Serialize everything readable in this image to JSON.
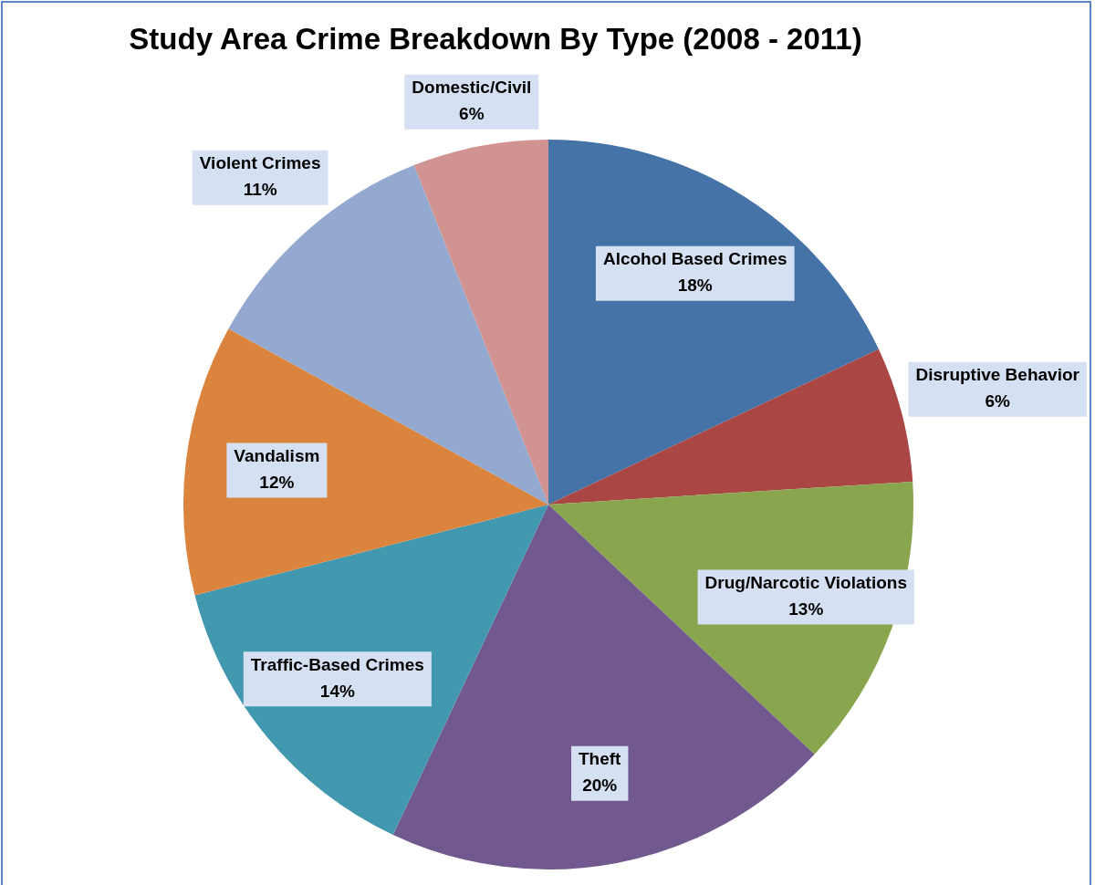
{
  "chart_data": {
    "type": "pie",
    "title": "Study Area Crime Breakdown By Type (2008 - 2011)",
    "categories": [
      "Alcohol Based Crimes",
      "Disruptive Behavior",
      "Drug/Narcotic Violations",
      "Theft",
      "Traffic-Based Crimes",
      "Vandalism",
      "Violent Crimes",
      "Domestic/Civil"
    ],
    "values": [
      18,
      6,
      13,
      20,
      14,
      12,
      11,
      6
    ],
    "colors": [
      "#4572a7",
      "#aa4643",
      "#89a54e",
      "#71588f",
      "#4198af",
      "#db843d",
      "#93a9cf",
      "#d19392"
    ],
    "value_labels": [
      "18%",
      "6%",
      "13%",
      "20%",
      "14%",
      "12%",
      "11%",
      "6%"
    ]
  }
}
